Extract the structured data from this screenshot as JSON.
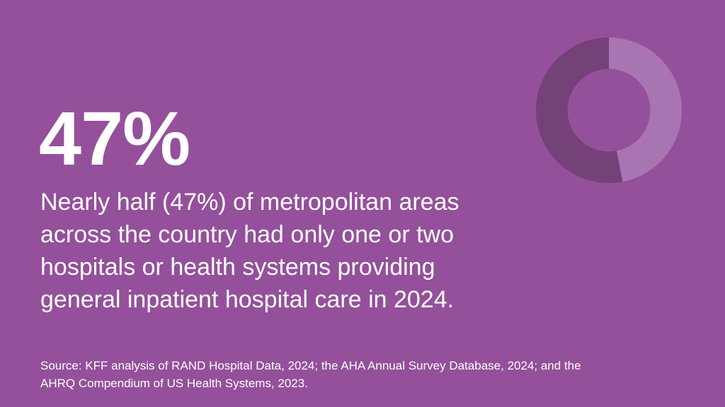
{
  "background_color": "#94509B",
  "text_color": "#FFFFFF",
  "headline": {
    "stat": "47%"
  },
  "description": {
    "lines": [
      "Nearly half (47%) of metropolitan areas",
      "across the country had only one or two",
      "hospitals or health systems providing",
      "general inpatient hospital care in 2024."
    ]
  },
  "source": {
    "lines": [
      "Source: KFF analysis of RAND Hospital Data, 2024; the AHA Annual Survey Database, 2024; and the",
      "AHRQ Compendium of US Health Systems, 2023."
    ]
  },
  "chart_data": {
    "type": "pie",
    "subtype": "donut",
    "title": "",
    "values": [
      47,
      53
    ],
    "colors": [
      "#A974B2",
      "#744179"
    ],
    "start_angle_deg": 0,
    "direction": "clockwise",
    "inner_radius_ratio": 0.57,
    "legend": false,
    "data_labels": false
  }
}
